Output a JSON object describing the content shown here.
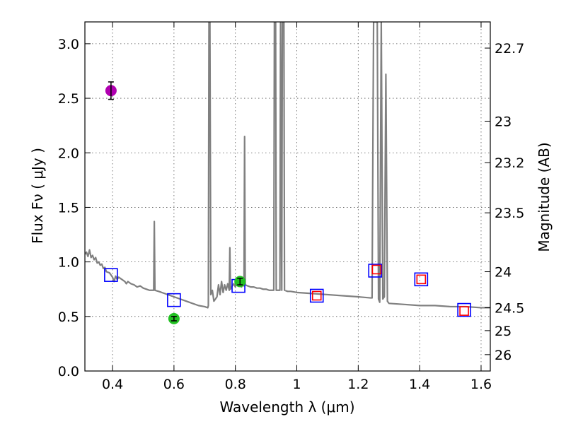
{
  "chart_data": {
    "type": "line",
    "xlabel": "Wavelength  λ (μm)",
    "ylabel": "Flux  Fν  ( μJy )",
    "ylabel_right": "Magnitude (AB)",
    "xlim": [
      0.31,
      1.63
    ],
    "ylim": [
      0.0,
      3.2
    ],
    "grid": true,
    "x_ticks": [
      {
        "value": 0.4,
        "label": "0.4"
      },
      {
        "value": 0.6,
        "label": "0.6"
      },
      {
        "value": 0.8,
        "label": "0.8"
      },
      {
        "value": 1.0,
        "label": "1"
      },
      {
        "value": 1.2,
        "label": "1.2"
      },
      {
        "value": 1.4,
        "label": "1.4"
      },
      {
        "value": 1.6,
        "label": "1.6"
      }
    ],
    "y_ticks": [
      {
        "value": 0.0,
        "label": "0.0"
      },
      {
        "value": 0.5,
        "label": "0.5"
      },
      {
        "value": 1.0,
        "label": "1.0"
      },
      {
        "value": 1.5,
        "label": "1.5"
      },
      {
        "value": 2.0,
        "label": "2.0"
      },
      {
        "value": 2.5,
        "label": "2.5"
      },
      {
        "value": 3.0,
        "label": "3.0"
      }
    ],
    "y_ticks_right": [
      {
        "flux": 2.96,
        "label": "22.7"
      },
      {
        "flux": 2.29,
        "label": "23"
      },
      {
        "flux": 1.91,
        "label": "23.2"
      },
      {
        "flux": 1.45,
        "label": "23.5"
      },
      {
        "flux": 0.91,
        "label": "24"
      },
      {
        "flux": 0.58,
        "label": "24.5"
      },
      {
        "flux": 0.37,
        "label": "25"
      },
      {
        "flux": 0.15,
        "label": "26"
      }
    ],
    "series": [
      {
        "name": "model-spectrum",
        "kind": "line",
        "color": "#808080",
        "points": [
          [
            0.31,
            1.07
          ],
          [
            0.315,
            1.09
          ],
          [
            0.32,
            1.05
          ],
          [
            0.325,
            1.11
          ],
          [
            0.33,
            1.04
          ],
          [
            0.335,
            1.06
          ],
          [
            0.34,
            1.02
          ],
          [
            0.345,
            1.04
          ],
          [
            0.35,
            0.99
          ],
          [
            0.355,
            1.0
          ],
          [
            0.36,
            0.97
          ],
          [
            0.365,
            0.98
          ],
          [
            0.37,
            0.94
          ],
          [
            0.375,
            0.95
          ],
          [
            0.38,
            0.91
          ],
          [
            0.39,
            0.9
          ],
          [
            0.395,
            0.88
          ],
          [
            0.4,
            0.86
          ],
          [
            0.405,
            0.82
          ],
          [
            0.41,
            0.87
          ],
          [
            0.415,
            0.84
          ],
          [
            0.42,
            0.86
          ],
          [
            0.43,
            0.84
          ],
          [
            0.44,
            0.82
          ],
          [
            0.445,
            0.8
          ],
          [
            0.45,
            0.82
          ],
          [
            0.46,
            0.8
          ],
          [
            0.47,
            0.79
          ],
          [
            0.48,
            0.77
          ],
          [
            0.49,
            0.78
          ],
          [
            0.5,
            0.76
          ],
          [
            0.51,
            0.75
          ],
          [
            0.52,
            0.74
          ],
          [
            0.53,
            0.74
          ],
          [
            0.534,
            0.74
          ],
          [
            0.536,
            1.37
          ],
          [
            0.538,
            0.74
          ],
          [
            0.55,
            0.73
          ],
          [
            0.57,
            0.71
          ],
          [
            0.6,
            0.68
          ],
          [
            0.62,
            0.66
          ],
          [
            0.64,
            0.64
          ],
          [
            0.66,
            0.62
          ],
          [
            0.68,
            0.6
          ],
          [
            0.7,
            0.59
          ],
          [
            0.71,
            0.58
          ],
          [
            0.712,
            0.6
          ],
          [
            0.714,
            3.2
          ],
          [
            0.717,
            3.2
          ],
          [
            0.72,
            0.7
          ],
          [
            0.725,
            0.74
          ],
          [
            0.73,
            0.64
          ],
          [
            0.74,
            0.68
          ],
          [
            0.745,
            0.79
          ],
          [
            0.75,
            0.7
          ],
          [
            0.755,
            0.82
          ],
          [
            0.76,
            0.72
          ],
          [
            0.765,
            0.79
          ],
          [
            0.77,
            0.74
          ],
          [
            0.775,
            0.8
          ],
          [
            0.78,
            0.74
          ],
          [
            0.782,
            1.13
          ],
          [
            0.784,
            0.75
          ],
          [
            0.79,
            0.78
          ],
          [
            0.795,
            0.8
          ],
          [
            0.8,
            0.77
          ],
          [
            0.805,
            0.84
          ],
          [
            0.81,
            0.78
          ],
          [
            0.815,
            0.82
          ],
          [
            0.82,
            0.77
          ],
          [
            0.825,
            0.8
          ],
          [
            0.828,
            0.78
          ],
          [
            0.83,
            2.15
          ],
          [
            0.832,
            0.79
          ],
          [
            0.84,
            0.78
          ],
          [
            0.85,
            0.77
          ],
          [
            0.86,
            0.77
          ],
          [
            0.87,
            0.76
          ],
          [
            0.88,
            0.76
          ],
          [
            0.89,
            0.75
          ],
          [
            0.9,
            0.75
          ],
          [
            0.91,
            0.74
          ],
          [
            0.92,
            0.74
          ],
          [
            0.925,
            0.74
          ],
          [
            0.927,
            3.2
          ],
          [
            0.931,
            3.2
          ],
          [
            0.933,
            0.74
          ],
          [
            0.94,
            0.74
          ],
          [
            0.945,
            0.74
          ],
          [
            0.947,
            3.2
          ],
          [
            0.951,
            0.74
          ],
          [
            0.953,
            3.2
          ],
          [
            0.958,
            3.2
          ],
          [
            0.96,
            0.74
          ],
          [
            0.97,
            0.73
          ],
          [
            0.98,
            0.73
          ],
          [
            1.0,
            0.72
          ],
          [
            1.05,
            0.71
          ],
          [
            1.1,
            0.7
          ],
          [
            1.15,
            0.69
          ],
          [
            1.2,
            0.68
          ],
          [
            1.24,
            0.67
          ],
          [
            1.245,
            0.67
          ],
          [
            1.25,
            3.2
          ],
          [
            1.262,
            3.2
          ],
          [
            1.266,
            0.66
          ],
          [
            1.27,
            0.63
          ],
          [
            1.275,
            3.2
          ],
          [
            1.28,
            0.66
          ],
          [
            1.285,
            0.68
          ],
          [
            1.29,
            2.72
          ],
          [
            1.295,
            0.64
          ],
          [
            1.3,
            0.62
          ],
          [
            1.35,
            0.61
          ],
          [
            1.4,
            0.6
          ],
          [
            1.45,
            0.6
          ],
          [
            1.5,
            0.59
          ],
          [
            1.55,
            0.59
          ],
          [
            1.6,
            0.58
          ],
          [
            1.63,
            0.58
          ]
        ]
      },
      {
        "name": "model-photometry",
        "kind": "open-square",
        "color": "#0000ff",
        "points": [
          [
            0.395,
            0.88
          ],
          [
            0.6,
            0.65
          ],
          [
            0.81,
            0.78
          ],
          [
            1.065,
            0.69
          ],
          [
            1.255,
            0.92
          ],
          [
            1.405,
            0.84
          ],
          [
            1.545,
            0.56
          ]
        ]
      },
      {
        "name": "observed-photometry",
        "kind": "open-square-small",
        "color": "#ff0000",
        "points": [
          [
            1.065,
            0.69
          ],
          [
            1.26,
            0.93
          ],
          [
            1.405,
            0.84
          ],
          [
            1.545,
            0.55
          ]
        ]
      },
      {
        "name": "detections-green",
        "kind": "dot",
        "color": "#22c022",
        "points": [
          [
            0.6,
            0.48,
            0.02
          ],
          [
            0.815,
            0.82,
            0.03
          ]
        ]
      },
      {
        "name": "detection-magenta",
        "kind": "dot",
        "color": "#b000b0",
        "points": [
          [
            0.395,
            2.57,
            0.08
          ]
        ]
      }
    ]
  }
}
